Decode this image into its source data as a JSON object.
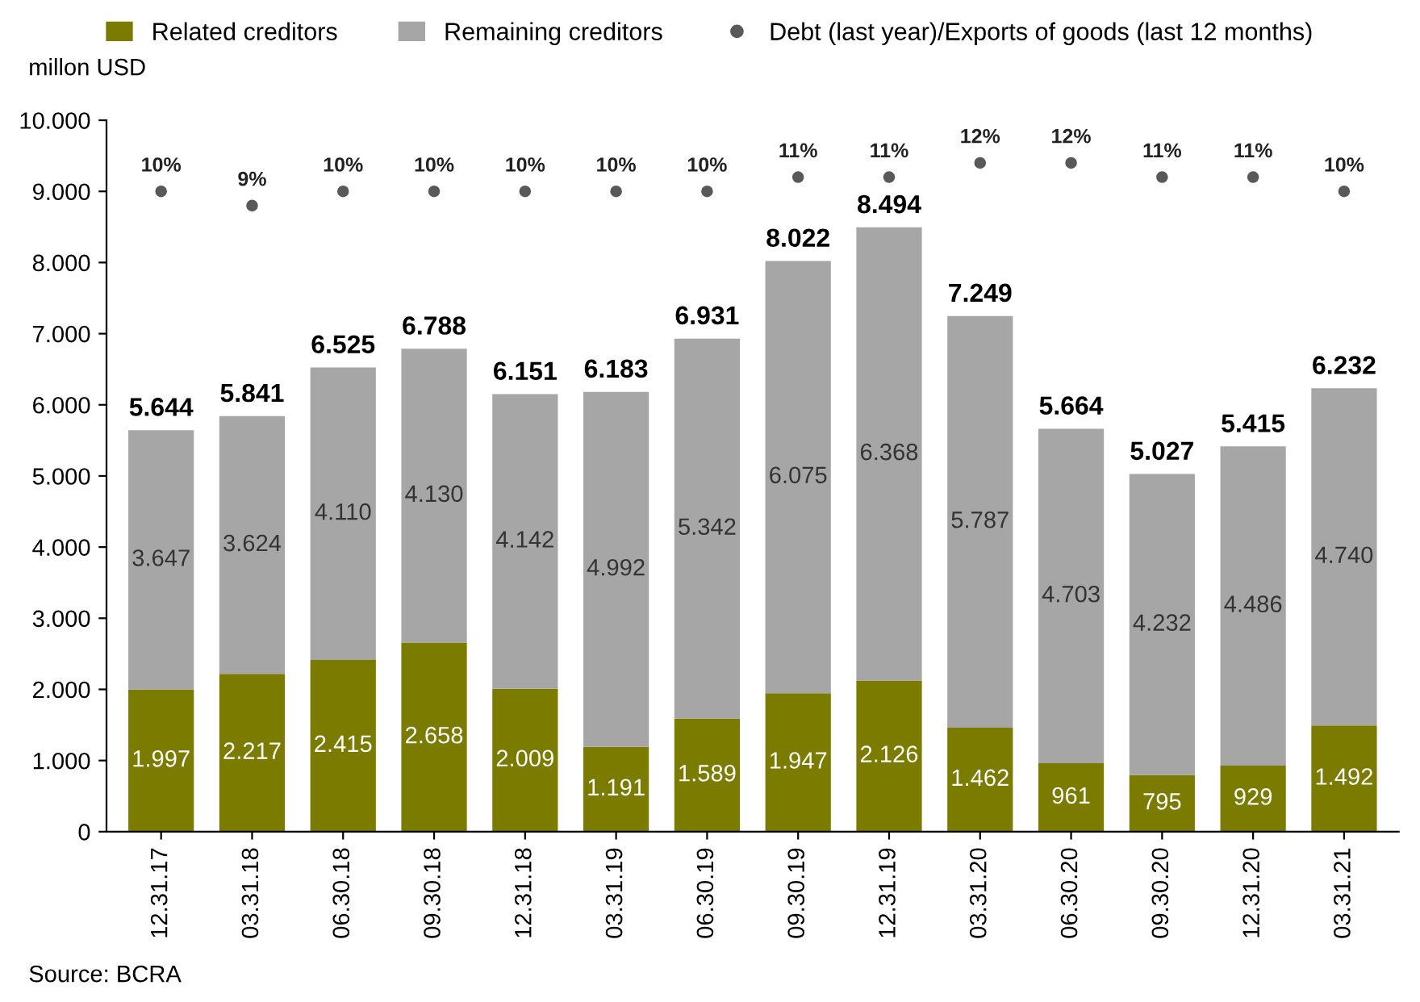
{
  "chart_data": {
    "type": "bar",
    "stacked": true,
    "ylabel": "millon USD",
    "categories": [
      "12.31.17",
      "03.31.18",
      "06.30.18",
      "09.30.18",
      "12.31.18",
      "03.31.19",
      "06.30.19",
      "09.30.19",
      "12.31.19",
      "03.31.20",
      "06.30.20",
      "09.30.20",
      "12.31.20",
      "03.31.21"
    ],
    "series": [
      {
        "name": "Related creditors",
        "color": "#7b7b00",
        "values": [
          1997,
          2217,
          2415,
          2658,
          2009,
          1191,
          1589,
          1947,
          2126,
          1462,
          961,
          795,
          929,
          1492
        ],
        "value_labels": [
          "1.997",
          "2.217",
          "2.415",
          "2.658",
          "2.009",
          "1.191",
          "1.589",
          "1.947",
          "2.126",
          "1.462",
          "961",
          "795",
          "929",
          "1.492"
        ]
      },
      {
        "name": "Remaining creditors",
        "color": "#a6a6a6",
        "values": [
          3647,
          3624,
          4110,
          4130,
          4142,
          4992,
          5342,
          6075,
          6368,
          5787,
          4703,
          4232,
          4486,
          4740
        ],
        "value_labels": [
          "3.647",
          "3.624",
          "4.110",
          "4.130",
          "4.142",
          "4.992",
          "5.342",
          "6.075",
          "6.368",
          "5.787",
          "4.703",
          "4.232",
          "4.486",
          "4.740"
        ]
      },
      {
        "name": "Debt (last year)/Exports of goods (last 12 months)",
        "type": "scatter",
        "axis": "y2",
        "color": "#595959",
        "marker": "circle",
        "values": [
          10,
          9,
          10,
          10,
          10,
          10,
          10,
          11,
          11,
          12,
          12,
          11,
          11,
          10
        ],
        "value_labels": [
          "10%",
          "9%",
          "10%",
          "10%",
          "10%",
          "10%",
          "10%",
          "11%",
          "11%",
          "12%",
          "12%",
          "11%",
          "11%",
          "10%"
        ]
      }
    ],
    "totals": [
      "5.644",
      "5.841",
      "6.525",
      "6.788",
      "6.151",
      "6.183",
      "6.931",
      "8.022",
      "8.494",
      "7.249",
      "5.664",
      "5.027",
      "5.415",
      "6.232"
    ],
    "ylim": [
      0,
      10000
    ],
    "yticks": [
      {
        "value": 0,
        "label": "0"
      },
      {
        "value": 1000,
        "label": "1.000"
      },
      {
        "value": 2000,
        "label": "2.000"
      },
      {
        "value": 3000,
        "label": "3.000"
      },
      {
        "value": 4000,
        "label": "4.000"
      },
      {
        "value": 5000,
        "label": "5.000"
      },
      {
        "value": 6000,
        "label": "6.000"
      },
      {
        "value": 7000,
        "label": "7.000"
      },
      {
        "value": 8000,
        "label": "8.000"
      },
      {
        "value": 9000,
        "label": "9.000"
      },
      {
        "value": 10000,
        "label": "10.000"
      }
    ],
    "y2lim": [
      -35,
      15
    ],
    "tick_labels": "xy",
    "grid": false,
    "legend": "top",
    "annotations": [
      "Source: BCRA"
    ]
  }
}
